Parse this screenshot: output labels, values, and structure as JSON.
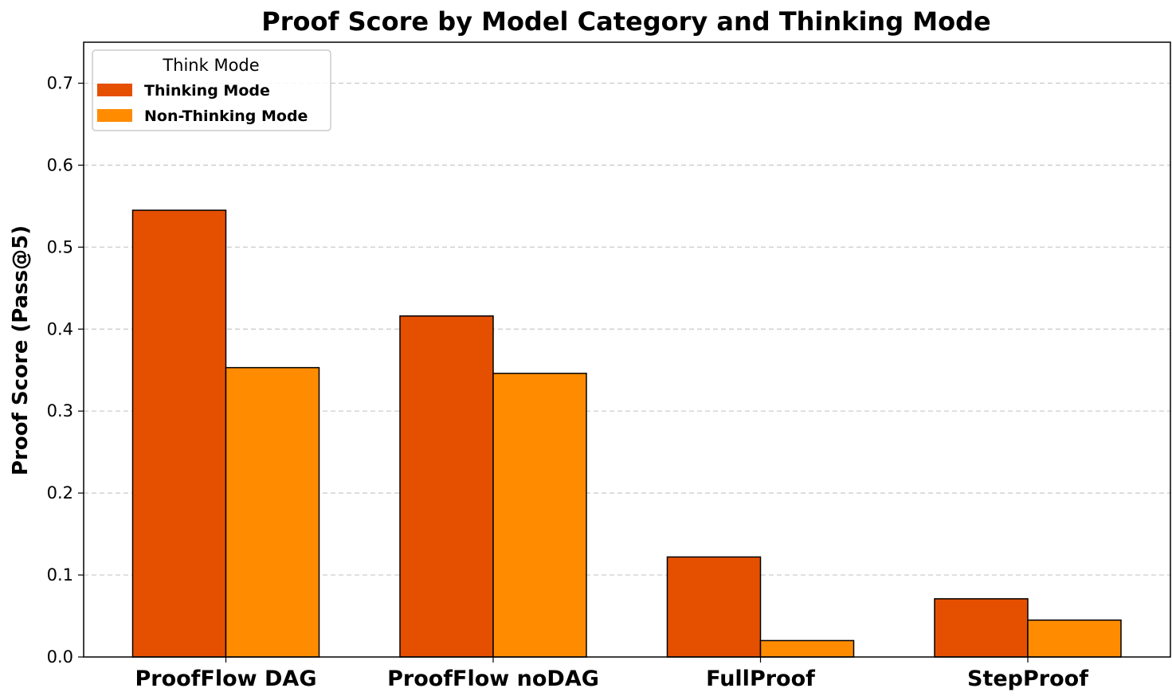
{
  "chart_data": {
    "type": "bar",
    "title": "Proof Score by Model Category and Thinking Mode",
    "xlabel": "",
    "ylabel": "Proof Score (Pass@5)",
    "categories": [
      "ProofFlow DAG",
      "ProofFlow noDAG",
      "FullProof",
      "StepProof"
    ],
    "series": [
      {
        "name": "Thinking Mode",
        "color": "#e55000",
        "values": [
          0.545,
          0.416,
          0.122,
          0.071
        ]
      },
      {
        "name": "Non-Thinking Mode",
        "color": "#ff8c00",
        "values": [
          0.353,
          0.346,
          0.02,
          0.045
        ]
      }
    ],
    "ylim": [
      0,
      0.75
    ],
    "yticks": [
      0.0,
      0.1,
      0.2,
      0.3,
      0.4,
      0.5,
      0.6,
      0.7
    ],
    "ytick_labels": [
      "0.0",
      "0.1",
      "0.2",
      "0.3",
      "0.4",
      "0.5",
      "0.6",
      "0.7"
    ],
    "grid": "y-dashed",
    "legend": {
      "title": "Think Mode",
      "position": "top-left"
    }
  }
}
